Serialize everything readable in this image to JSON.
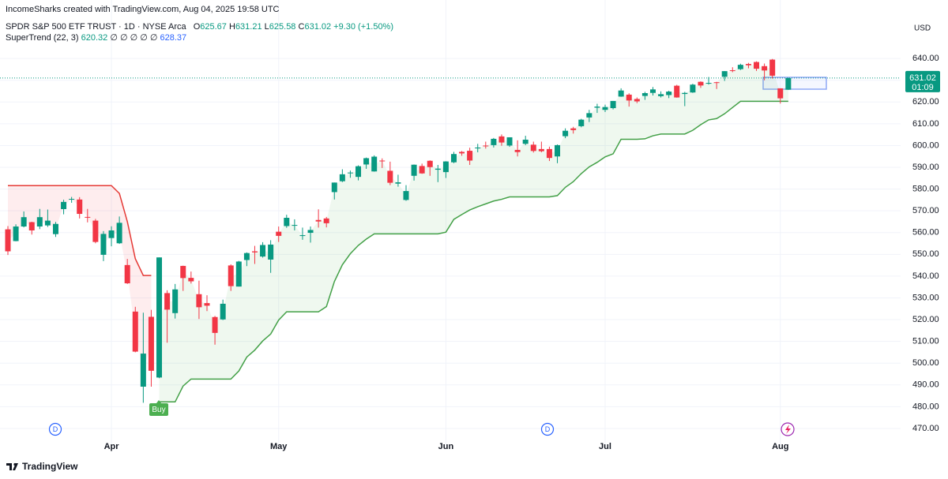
{
  "header": {
    "credit": "IncomeSharks created with TradingView.com, Aug 04, 2025 19:58 UTC",
    "o_label": "O",
    "h_label": "H",
    "l_label": "L",
    "c_label": "C",
    "change": "+9.30 (+1.50%)",
    "indicator": "SuperTrend (22, 3)",
    "indicator_empty": "∅ ∅ ∅ ∅ ∅",
    "indicator_value2": 628.37
  },
  "footer": {
    "brand": "TradingView"
  },
  "chart_data": {
    "type": "candlestick",
    "title": "SPDR S&P 500 ETF TRUST · 1D · NYSE Arca",
    "currency": "USD",
    "countdown": "01:09",
    "signal_label": "Buy",
    "dividend_marker": "D",
    "up_color": "#089981",
    "down_color": "#f23645",
    "trend_up_color": "#43a047",
    "trend_down_color": "#e53935",
    "grid": true,
    "ylim": [
      462,
      660
    ],
    "yticks": [
      {
        "value": 470,
        "label": "470.00"
      },
      {
        "value": 480,
        "label": "480.00"
      },
      {
        "value": 490,
        "label": "490.00"
      },
      {
        "value": 500,
        "label": "500.00"
      },
      {
        "value": 510,
        "label": "510.00"
      },
      {
        "value": 520,
        "label": "520.00"
      },
      {
        "value": 530,
        "label": "530.00"
      },
      {
        "value": 540,
        "label": "540.00"
      },
      {
        "value": 550,
        "label": "550.00"
      },
      {
        "value": 560,
        "label": "560.00"
      },
      {
        "value": 570,
        "label": "570.00"
      },
      {
        "value": 580,
        "label": "580.00"
      },
      {
        "value": 590,
        "label": "590.00"
      },
      {
        "value": 600,
        "label": "600.00"
      },
      {
        "value": 610,
        "label": "610.00"
      },
      {
        "value": 620,
        "label": "620.00"
      },
      {
        "value": 630,
        "label": "630.00"
      },
      {
        "value": 640,
        "label": "640.00"
      }
    ],
    "categories": [
      null,
      null,
      null,
      null,
      null,
      null,
      null,
      null,
      null,
      null,
      null,
      null,
      null,
      "Apr",
      null,
      null,
      null,
      null,
      null,
      null,
      null,
      null,
      null,
      null,
      null,
      null,
      null,
      null,
      null,
      null,
      null,
      null,
      null,
      null,
      "May",
      null,
      null,
      null,
      null,
      null,
      null,
      null,
      null,
      null,
      null,
      null,
      null,
      null,
      null,
      null,
      null,
      null,
      null,
      null,
      null,
      "Jun",
      null,
      null,
      null,
      null,
      null,
      null,
      null,
      null,
      null,
      null,
      null,
      null,
      null,
      null,
      null,
      null,
      null,
      null,
      null,
      "Jul",
      null,
      null,
      null,
      null,
      null,
      null,
      null,
      null,
      null,
      null,
      null,
      null,
      null,
      null,
      null,
      null,
      null,
      null,
      null,
      null,
      null,
      "Aug",
      null
    ],
    "open": [
      561.5,
      556.1,
      562.8,
      564.8,
      562.8,
      563.3,
      559.3,
      570.8,
      575.3,
      575.2,
      567.2,
      565.5,
      549.8,
      557.5,
      555.1,
      545.1,
      523.7,
      489.2,
      521.3,
      493.4,
      532.2,
      523.0,
      544.7,
      539.2,
      531.7,
      527.6,
      521.2,
      520.1,
      544.9,
      535.2,
      547.4,
      551.4,
      549.0,
      547.6,
      560.4,
      563.0,
      563.2,
      558.6,
      559.9,
      565.8,
      566.5,
      578.6,
      583.6,
      587.6,
      585.6,
      591.3,
      588.1,
      593.1,
      588.4,
      582.5,
      575.0,
      586.1,
      590.6,
      593.0,
      588.9,
      587.8,
      592.3,
      597.1,
      597.6,
      598.7,
      600.0,
      600.2,
      604.2,
      600.0,
      598.0,
      600.8,
      600.4,
      598.4,
      598.4,
      595.0,
      604.3,
      607.9,
      608.9,
      612.9,
      617.4,
      616.4,
      617.2,
      622.5,
      623.4,
      621.4,
      622.8,
      624.2,
      622.7,
      623.2,
      627.5,
      623.7,
      624.4,
      629.3,
      628.8,
      629.1,
      631.6,
      634.6,
      635.1,
      637.5,
      638.4,
      636.5,
      639.5,
      626.3,
      625.67
    ],
    "high": [
      563.0,
      563.8,
      569.7,
      565.0,
      570.9,
      570.6,
      564.9,
      575.1,
      576.4,
      576.3,
      570.9,
      566.3,
      560.7,
      562.9,
      567.4,
      547.9,
      525.9,
      523.2,
      524.5,
      548.6,
      533.5,
      536.4,
      544.8,
      542.1,
      537.9,
      531.2,
      521.7,
      529.2,
      545.4,
      547.0,
      550.9,
      553.9,
      555.6,
      556.5,
      562.8,
      568.2,
      566.1,
      562.3,
      562.8,
      570.7,
      567.2,
      583.0,
      589.1,
      588.5,
      590.9,
      594.5,
      595.5,
      594.1,
      592.6,
      586.6,
      581.8,
      591.3,
      591.7,
      593.2,
      591.1,
      592.8,
      597.1,
      597.5,
      599.0,
      600.8,
      601.8,
      603.5,
      605.1,
      603.8,
      602.4,
      604.5,
      601.8,
      601.8,
      599.5,
      600.5,
      607.9,
      608.6,
      612.3,
      616.4,
      619.2,
      618.8,
      620.5,
      626.3,
      624.0,
      622.1,
      624.7,
      626.9,
      624.9,
      625.2,
      627.9,
      624.7,
      628.4,
      629.5,
      631.5,
      629.3,
      634.2,
      636.0,
      637.6,
      638.0,
      638.7,
      637.7,
      639.8,
      626.3,
      631.21
    ],
    "low": [
      549.7,
      556.0,
      562.4,
      559.1,
      561.6,
      562.6,
      558.0,
      568.4,
      573.7,
      566.5,
      564.7,
      555.1,
      546.9,
      553.7,
      554.8,
      536.4,
      505.0,
      481.8,
      489.2,
      493.1,
      509.4,
      520.5,
      533.2,
      536.6,
      520.3,
      523.9,
      508.5,
      519.8,
      533.2,
      535.2,
      544.6,
      545.6,
      548.5,
      541.5,
      555.7,
      562.2,
      561.0,
      556.7,
      555.4,
      562.3,
      562.4,
      575.2,
      583.2,
      585.2,
      584.0,
      589.3,
      588.0,
      589.7,
      581.8,
      581.1,
      574.6,
      583.9,
      587.0,
      586.1,
      583.2,
      585.1,
      591.9,
      595.3,
      591.1,
      596.9,
      598.6,
      599.1,
      599.9,
      599.4,
      595.0,
      600.2,
      596.8,
      596.9,
      592.9,
      591.9,
      603.4,
      605.5,
      608.4,
      610.8,
      615.0,
      615.4,
      616.6,
      622.4,
      617.9,
      619.5,
      621.0,
      623.0,
      622.1,
      621.8,
      622.0,
      618.1,
      624.2,
      626.5,
      628.0,
      626.0,
      629.7,
      633.7,
      634.7,
      635.5,
      634.3,
      630.0,
      630.8,
      619.3,
      625.58
    ],
    "close": [
      551.4,
      562.8,
      567.1,
      561.0,
      567.1,
      565.5,
      564.0,
      574.1,
      575.5,
      568.6,
      567.1,
      555.7,
      559.4,
      561.0,
      564.5,
      536.7,
      505.3,
      504.4,
      496.5,
      548.6,
      524.6,
      533.9,
      539.1,
      537.6,
      525.7,
      526.4,
      513.9,
      527.3,
      535.4,
      546.7,
      550.6,
      550.9,
      554.3,
      554.5,
      558.5,
      566.8,
      563.5,
      558.8,
      561.2,
      565.1,
      564.3,
      583.0,
      586.8,
      587.6,
      590.5,
      594.2,
      594.9,
      592.9,
      582.9,
      583.1,
      579.1,
      591.2,
      587.2,
      590.1,
      589.4,
      592.7,
      596.1,
      596.4,
      593.1,
      599.1,
      599.7,
      603.1,
      601.4,
      603.8,
      597.0,
      602.7,
      597.5,
      597.4,
      594.3,
      600.2,
      606.8,
      607.1,
      611.9,
      614.9,
      617.9,
      617.7,
      620.5,
      625.3,
      620.7,
      620.3,
      624.1,
      625.8,
      623.6,
      624.8,
      622.1,
      624.2,
      628.0,
      627.6,
      628.8,
      628.9,
      634.2,
      634.4,
      637.1,
      636.9,
      635.3,
      634.5,
      632.1,
      621.7,
      631.02
    ],
    "supertrend_down": [
      581.6,
      581.6,
      581.6,
      581.6,
      581.6,
      581.6,
      581.6,
      581.6,
      581.6,
      581.6,
      581.6,
      581.6,
      581.6,
      581.6,
      578.0,
      565.0,
      548.0,
      540.3,
      540.3,
      null,
      null,
      null,
      null,
      null,
      null,
      null,
      null,
      null,
      null,
      null,
      null,
      null,
      null,
      null,
      null,
      null,
      null,
      null,
      null,
      null,
      null,
      null,
      null,
      null,
      null,
      null,
      null,
      null,
      null,
      null,
      null,
      null,
      null,
      null,
      null,
      null,
      null,
      null,
      null,
      null,
      null,
      null,
      null,
      null,
      null,
      null,
      null,
      null,
      null,
      null,
      null,
      null,
      null,
      null,
      null,
      null,
      null,
      null,
      null,
      null,
      null,
      null,
      null,
      null,
      null,
      null,
      null,
      null,
      null,
      null,
      null,
      null,
      null,
      null,
      null,
      null,
      null,
      null,
      null
    ],
    "supertrend_up": [
      null,
      null,
      null,
      null,
      null,
      null,
      null,
      null,
      null,
      null,
      null,
      null,
      null,
      null,
      null,
      null,
      null,
      null,
      null,
      482.2,
      482.2,
      482.2,
      489.5,
      492.7,
      492.7,
      492.7,
      492.7,
      492.7,
      492.7,
      496.4,
      502.8,
      506.0,
      510.2,
      513.4,
      519.8,
      523.6,
      523.6,
      523.6,
      523.6,
      523.6,
      526.0,
      537.5,
      545.2,
      550.3,
      554.1,
      557.0,
      559.4,
      559.4,
      559.4,
      559.4,
      559.4,
      559.4,
      559.4,
      559.4,
      559.4,
      560.2,
      566.1,
      568.3,
      570.4,
      571.9,
      573.2,
      574.5,
      575.3,
      576.4,
      576.4,
      576.4,
      576.4,
      576.4,
      576.4,
      577.0,
      580.8,
      583.4,
      587.1,
      590.2,
      592.3,
      594.8,
      596.2,
      602.9,
      602.9,
      602.9,
      603.1,
      604.5,
      605.3,
      605.3,
      605.3,
      605.3,
      607.0,
      609.6,
      611.8,
      612.4,
      614.6,
      617.5,
      620.32,
      620.32,
      620.32,
      620.32,
      620.32,
      620.32,
      620.32
    ]
  }
}
